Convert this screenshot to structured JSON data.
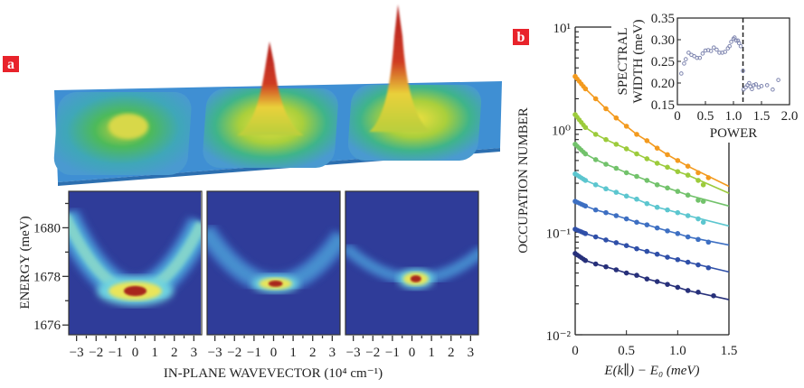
{
  "panel_labels": {
    "a": "a",
    "b": "b"
  },
  "colors": {
    "label_bg": "#e8232b",
    "heatmap_bg": "#2f3c99"
  },
  "chart_data": [
    {
      "type": "surface-3d",
      "description_of_marks": "three mesas with condensate peaks, increasing from left to right"
    },
    {
      "type": "heatmap",
      "panels": 3,
      "xlabel": "IN-PLANE WAVEVECTOR (10⁴ cm⁻¹)",
      "ylabel": "ENERGY (meV)",
      "xlim": [
        -3.4,
        3.4
      ],
      "ylim": [
        1675.6,
        1681.5
      ],
      "xticks": [
        "−3",
        "−2",
        "−1",
        "0",
        "1",
        "2",
        "3"
      ],
      "xtick_values": [
        -3,
        -2,
        -1,
        0,
        1,
        2,
        3
      ],
      "yticks": [
        "1676",
        "1678",
        "1680"
      ],
      "ytick_values": [
        1676,
        1678,
        1680
      ],
      "peaks": [
        {
          "k": 0.0,
          "E": 1677.4,
          "spread": "wide parabola"
        },
        {
          "k": 0.1,
          "E": 1677.7,
          "spread": "narrow"
        },
        {
          "k": 0.2,
          "E": 1677.9,
          "spread": "narrowest"
        }
      ]
    },
    {
      "type": "scatter",
      "yscale": "log",
      "xlabel": "E(k∥) − E₀ (meV)",
      "ylabel": "OCCUPATION NUMBER",
      "xlim": [
        0,
        1.5
      ],
      "ylim": [
        0.01,
        10
      ],
      "xticks": [
        "0",
        "0.5",
        "1.0",
        "1.5"
      ],
      "xtick_values": [
        0,
        0.5,
        1.0,
        1.5
      ],
      "yticks": [
        "10⁻²",
        "10⁻¹",
        "10⁰",
        "10¹"
      ],
      "ytick_values": [
        0.01,
        0.1,
        1,
        10
      ],
      "series": [
        {
          "color": "#f39a1e",
          "x": [
            0,
            0.1,
            0.2,
            0.3,
            0.4,
            0.5,
            0.6,
            0.7,
            0.8,
            0.9,
            1.0,
            1.1,
            1.2,
            1.3
          ],
          "y": [
            3.3,
            2.5,
            2.0,
            1.6,
            1.3,
            1.08,
            0.9,
            0.78,
            0.66,
            0.57,
            0.5,
            0.44,
            0.38,
            0.34
          ],
          "fit_end": 0.28
        },
        {
          "color": "#9ccb3b",
          "x": [
            0,
            0.1,
            0.2,
            0.3,
            0.4,
            0.5,
            0.6,
            0.7,
            0.8,
            0.9,
            1.0,
            1.1,
            1.2,
            1.25
          ],
          "y": [
            1.4,
            1.05,
            0.9,
            0.8,
            0.72,
            0.65,
            0.58,
            0.52,
            0.47,
            0.43,
            0.39,
            0.36,
            0.32,
            0.29
          ],
          "fit_end": 0.24
        },
        {
          "color": "#72c26b",
          "x": [
            0,
            0.1,
            0.2,
            0.3,
            0.4,
            0.5,
            0.6,
            0.7,
            0.8,
            0.9,
            1.0,
            1.1,
            1.2,
            1.25
          ],
          "y": [
            0.72,
            0.58,
            0.51,
            0.46,
            0.42,
            0.38,
            0.35,
            0.32,
            0.29,
            0.27,
            0.25,
            0.23,
            0.205,
            0.2
          ],
          "fit_end": 0.18
        },
        {
          "color": "#5cc6cf",
          "x": [
            0,
            0.1,
            0.2,
            0.3,
            0.4,
            0.5,
            0.6,
            0.7,
            0.8,
            0.9,
            1.0,
            1.1,
            1.2,
            1.25
          ],
          "y": [
            0.37,
            0.32,
            0.29,
            0.265,
            0.245,
            0.225,
            0.21,
            0.19,
            0.175,
            0.165,
            0.155,
            0.145,
            0.135,
            0.125
          ],
          "fit_end": 0.115
        },
        {
          "color": "#3d6fc2",
          "x": [
            0,
            0.1,
            0.2,
            0.3,
            0.4,
            0.5,
            0.6,
            0.7,
            0.8,
            0.9,
            1.0,
            1.1,
            1.2,
            1.3
          ],
          "y": [
            0.2,
            0.18,
            0.165,
            0.155,
            0.145,
            0.135,
            0.125,
            0.118,
            0.11,
            0.103,
            0.097,
            0.09,
            0.085,
            0.08
          ],
          "fit_end": 0.075
        },
        {
          "color": "#2f4fa8",
          "x": [
            0,
            0.1,
            0.2,
            0.3,
            0.4,
            0.5,
            0.6,
            0.7,
            0.8,
            0.9,
            1.0,
            1.1,
            1.2,
            1.3
          ],
          "y": [
            0.107,
            0.097,
            0.09,
            0.084,
            0.079,
            0.074,
            0.069,
            0.065,
            0.061,
            0.057,
            0.054,
            0.051,
            0.048,
            0.045
          ],
          "fit_end": 0.041
        },
        {
          "color": "#27307a",
          "x": [
            0,
            0.1,
            0.2,
            0.3,
            0.4,
            0.5,
            0.6,
            0.7,
            0.8,
            0.9,
            1.0,
            1.1,
            1.2,
            1.35
          ],
          "y": [
            0.062,
            0.053,
            0.049,
            0.046,
            0.043,
            0.04,
            0.038,
            0.035,
            0.033,
            0.031,
            0.029,
            0.027,
            0.026,
            0.024
          ],
          "fit_end": 0.022
        }
      ]
    },
    {
      "type": "scatter",
      "inset": true,
      "xlabel": "POWER",
      "ylabel_lines": [
        "SPECTRAL",
        "WIDTH (meV)"
      ],
      "xlim": [
        0,
        2.0
      ],
      "ylim": [
        0.15,
        0.35
      ],
      "xticks": [
        "0",
        "0.5",
        "1.0",
        "1.5",
        "2.0"
      ],
      "xtick_values": [
        0,
        0.5,
        1.0,
        1.5,
        2.0
      ],
      "yticks": [
        "0.15",
        "0.20",
        "0.25",
        "0.30",
        "0.35"
      ],
      "ytick_values": [
        0.15,
        0.2,
        0.25,
        0.3,
        0.35
      ],
      "threshold_line_x": 1.17,
      "marker_color": "#7f86b0",
      "x": [
        0.07,
        0.12,
        0.15,
        0.2,
        0.25,
        0.3,
        0.35,
        0.4,
        0.45,
        0.5,
        0.55,
        0.6,
        0.65,
        0.7,
        0.75,
        0.8,
        0.85,
        0.9,
        0.93,
        0.96,
        1.0,
        1.02,
        1.05,
        1.08,
        1.1,
        1.13,
        1.17,
        1.18,
        1.22,
        1.25,
        1.28,
        1.3,
        1.33,
        1.36,
        1.4,
        1.45,
        1.5,
        1.6,
        1.7,
        1.8
      ],
      "y": [
        0.222,
        0.245,
        0.255,
        0.27,
        0.265,
        0.262,
        0.258,
        0.258,
        0.268,
        0.275,
        0.276,
        0.274,
        0.282,
        0.277,
        0.27,
        0.27,
        0.272,
        0.28,
        0.285,
        0.295,
        0.302,
        0.305,
        0.298,
        0.298,
        0.292,
        0.285,
        0.228,
        0.185,
        0.19,
        0.195,
        0.2,
        0.192,
        0.186,
        0.195,
        0.197,
        0.19,
        0.193,
        0.195,
        0.185,
        0.207
      ]
    }
  ]
}
